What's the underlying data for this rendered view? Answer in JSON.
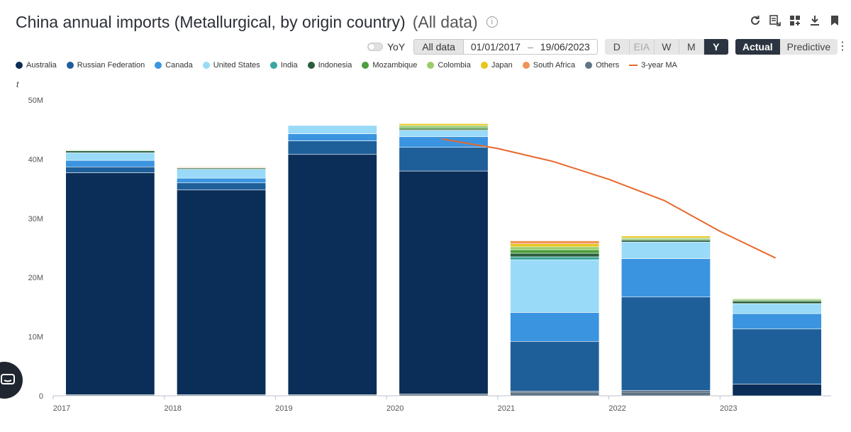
{
  "header": {
    "title": "China annual imports (Metallurgical, by origin country)",
    "subtitle": "(All data)",
    "info_icon": "info-icon",
    "tools": [
      "refresh-icon",
      "export-settings-icon",
      "dashboard-icon",
      "download-icon",
      "bookmark-icon"
    ]
  },
  "controls": {
    "yoy_label": "YoY",
    "range_label": "All data",
    "date_from": "01/01/2017",
    "date_sep": "–",
    "date_to": "19/06/2023",
    "periods": [
      "D",
      "EIA",
      "W",
      "M",
      "Y"
    ],
    "active_period": "Y",
    "modes": [
      "Actual",
      "Predictive"
    ],
    "active_mode": "Actual"
  },
  "chart_data": {
    "type": "bar",
    "stacked": true,
    "y_unit": "t",
    "ylim": [
      0,
      50000000
    ],
    "yticks": [
      0,
      10000000,
      20000000,
      30000000,
      40000000,
      50000000
    ],
    "ytick_labels": [
      "0",
      "10M",
      "20M",
      "30M",
      "40M",
      "50M"
    ],
    "xtick_labels": [
      "2017",
      "2018",
      "2019",
      "2020",
      "2021",
      "2022",
      "2023"
    ],
    "categories": [
      "2017",
      "2018",
      "2019",
      "2020",
      "2021",
      "2022",
      "2023"
    ],
    "grid": false,
    "legend_position": "top-left",
    "series": [
      {
        "name": "Others",
        "color": "#607585",
        "values": [
          200000,
          200000,
          200000,
          300000,
          600000,
          700000,
          0
        ]
      },
      {
        "name": "Australia",
        "color": "#0b2e58",
        "values": [
          37500000,
          34600000,
          40600000,
          37700000,
          200000,
          200000,
          2000000
        ]
      },
      {
        "name": "Russian Federation",
        "color": "#1f5f99",
        "values": [
          1000000,
          1200000,
          2300000,
          4000000,
          8400000,
          15800000,
          9300000
        ]
      },
      {
        "name": "Canada",
        "color": "#3b94e0",
        "values": [
          1100000,
          800000,
          1200000,
          1800000,
          4900000,
          6500000,
          2600000
        ]
      },
      {
        "name": "United States",
        "color": "#99daf8",
        "values": [
          1300000,
          1500000,
          1400000,
          1100000,
          8900000,
          2800000,
          1700000
        ]
      },
      {
        "name": "India",
        "color": "#39a79d",
        "values": [
          0,
          0,
          0,
          0,
          500000,
          0,
          0
        ]
      },
      {
        "name": "Indonesia",
        "color": "#2a5d3a",
        "values": [
          300000,
          200000,
          0,
          200000,
          600000,
          300000,
          400000
        ]
      },
      {
        "name": "Mozambique",
        "color": "#4c9e3a",
        "values": [
          100000,
          0,
          0,
          300000,
          600000,
          200000,
          200000
        ]
      },
      {
        "name": "Colombia",
        "color": "#9ccc6a",
        "values": [
          100000,
          100000,
          0,
          300000,
          500000,
          200000,
          200000
        ]
      },
      {
        "name": "Japan",
        "color": "#e8c51b",
        "values": [
          0,
          0,
          0,
          300000,
          500000,
          300000,
          0
        ]
      },
      {
        "name": "South Africa",
        "color": "#f0935a",
        "values": [
          0,
          100000,
          0,
          0,
          500000,
          0,
          0
        ]
      }
    ],
    "line_series": {
      "name": "3-year MA",
      "color": "#e8682c",
      "x": [
        2020.5,
        2021.0,
        2021.5,
        2022.0,
        2022.5,
        2023.0,
        2023.5
      ],
      "values": [
        43400000,
        41800000,
        39600000,
        36600000,
        33000000,
        27800000,
        23300000
      ]
    }
  },
  "legend": [
    {
      "name": "Australia",
      "color": "#0b2e58",
      "shape": "dot"
    },
    {
      "name": "Russian Federation",
      "color": "#1f5f99",
      "shape": "dot"
    },
    {
      "name": "Canada",
      "color": "#3b94e0",
      "shape": "dot"
    },
    {
      "name": "United States",
      "color": "#99daf8",
      "shape": "dot"
    },
    {
      "name": "India",
      "color": "#39a79d",
      "shape": "dot"
    },
    {
      "name": "Indonesia",
      "color": "#2a5d3a",
      "shape": "dot"
    },
    {
      "name": "Mozambique",
      "color": "#4c9e3a",
      "shape": "dot"
    },
    {
      "name": "Colombia",
      "color": "#9ccc6a",
      "shape": "dot"
    },
    {
      "name": "Japan",
      "color": "#e8c51b",
      "shape": "dot"
    },
    {
      "name": "South Africa",
      "color": "#f0935a",
      "shape": "dot"
    },
    {
      "name": "Others",
      "color": "#607585",
      "shape": "dot"
    },
    {
      "name": "3-year MA",
      "color": "#e8682c",
      "shape": "line"
    }
  ]
}
